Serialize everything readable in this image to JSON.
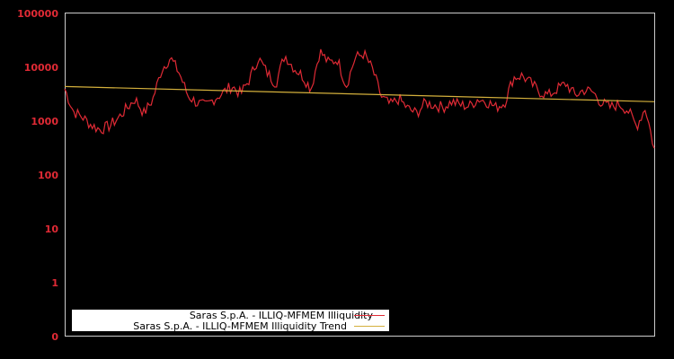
{
  "chart_data": {
    "type": "line",
    "title": "",
    "xlabel": "",
    "ylabel": "",
    "y_scale": "log",
    "ylim": [
      0,
      100000
    ],
    "y_ticks": [
      "100000",
      "10000",
      "1000",
      "100",
      "10",
      "1",
      "0"
    ],
    "grid": false,
    "legend_position": "bottom-left",
    "series": [
      {
        "name": "Saras S.p.A. - ILLIQ-MFMEM Illiquidity",
        "color": "#e02a35",
        "values": [
          4000,
          1500,
          1200,
          850,
          700,
          800,
          1100,
          1700,
          2600,
          1400,
          2500,
          9000,
          15000,
          8000,
          3000,
          2200,
          1900,
          2600,
          3400,
          4500,
          3200,
          6000,
          15000,
          8000,
          5000,
          17000,
          10000,
          7000,
          4000,
          20000,
          12000,
          14000,
          4500,
          15000,
          18000,
          9000,
          2800,
          2000,
          2600,
          1700,
          1400,
          2200,
          2000,
          1800,
          2300,
          2000,
          1900,
          2600,
          2300,
          1800,
          2200,
          6500,
          7000,
          5000,
          3500,
          3000,
          4000,
          5000,
          3000,
          3800,
          3500,
          2200,
          1800,
          2100,
          1600,
          800,
          1800,
          300
        ]
      },
      {
        "name": "Saras S.p.A. - ILLIQ-MFMEM Illiquidity Trend",
        "color": "#d4b03c",
        "values": [
          4400,
          2300
        ]
      }
    ]
  },
  "legend": {
    "items": [
      {
        "label": "Saras S.p.A. - ILLIQ-MFMEM Illiquidity",
        "color": "#e02a35"
      },
      {
        "label": "Saras S.p.A. - ILLIQ-MFMEM Illiquidity Trend",
        "color": "#d4b03c"
      }
    ]
  }
}
